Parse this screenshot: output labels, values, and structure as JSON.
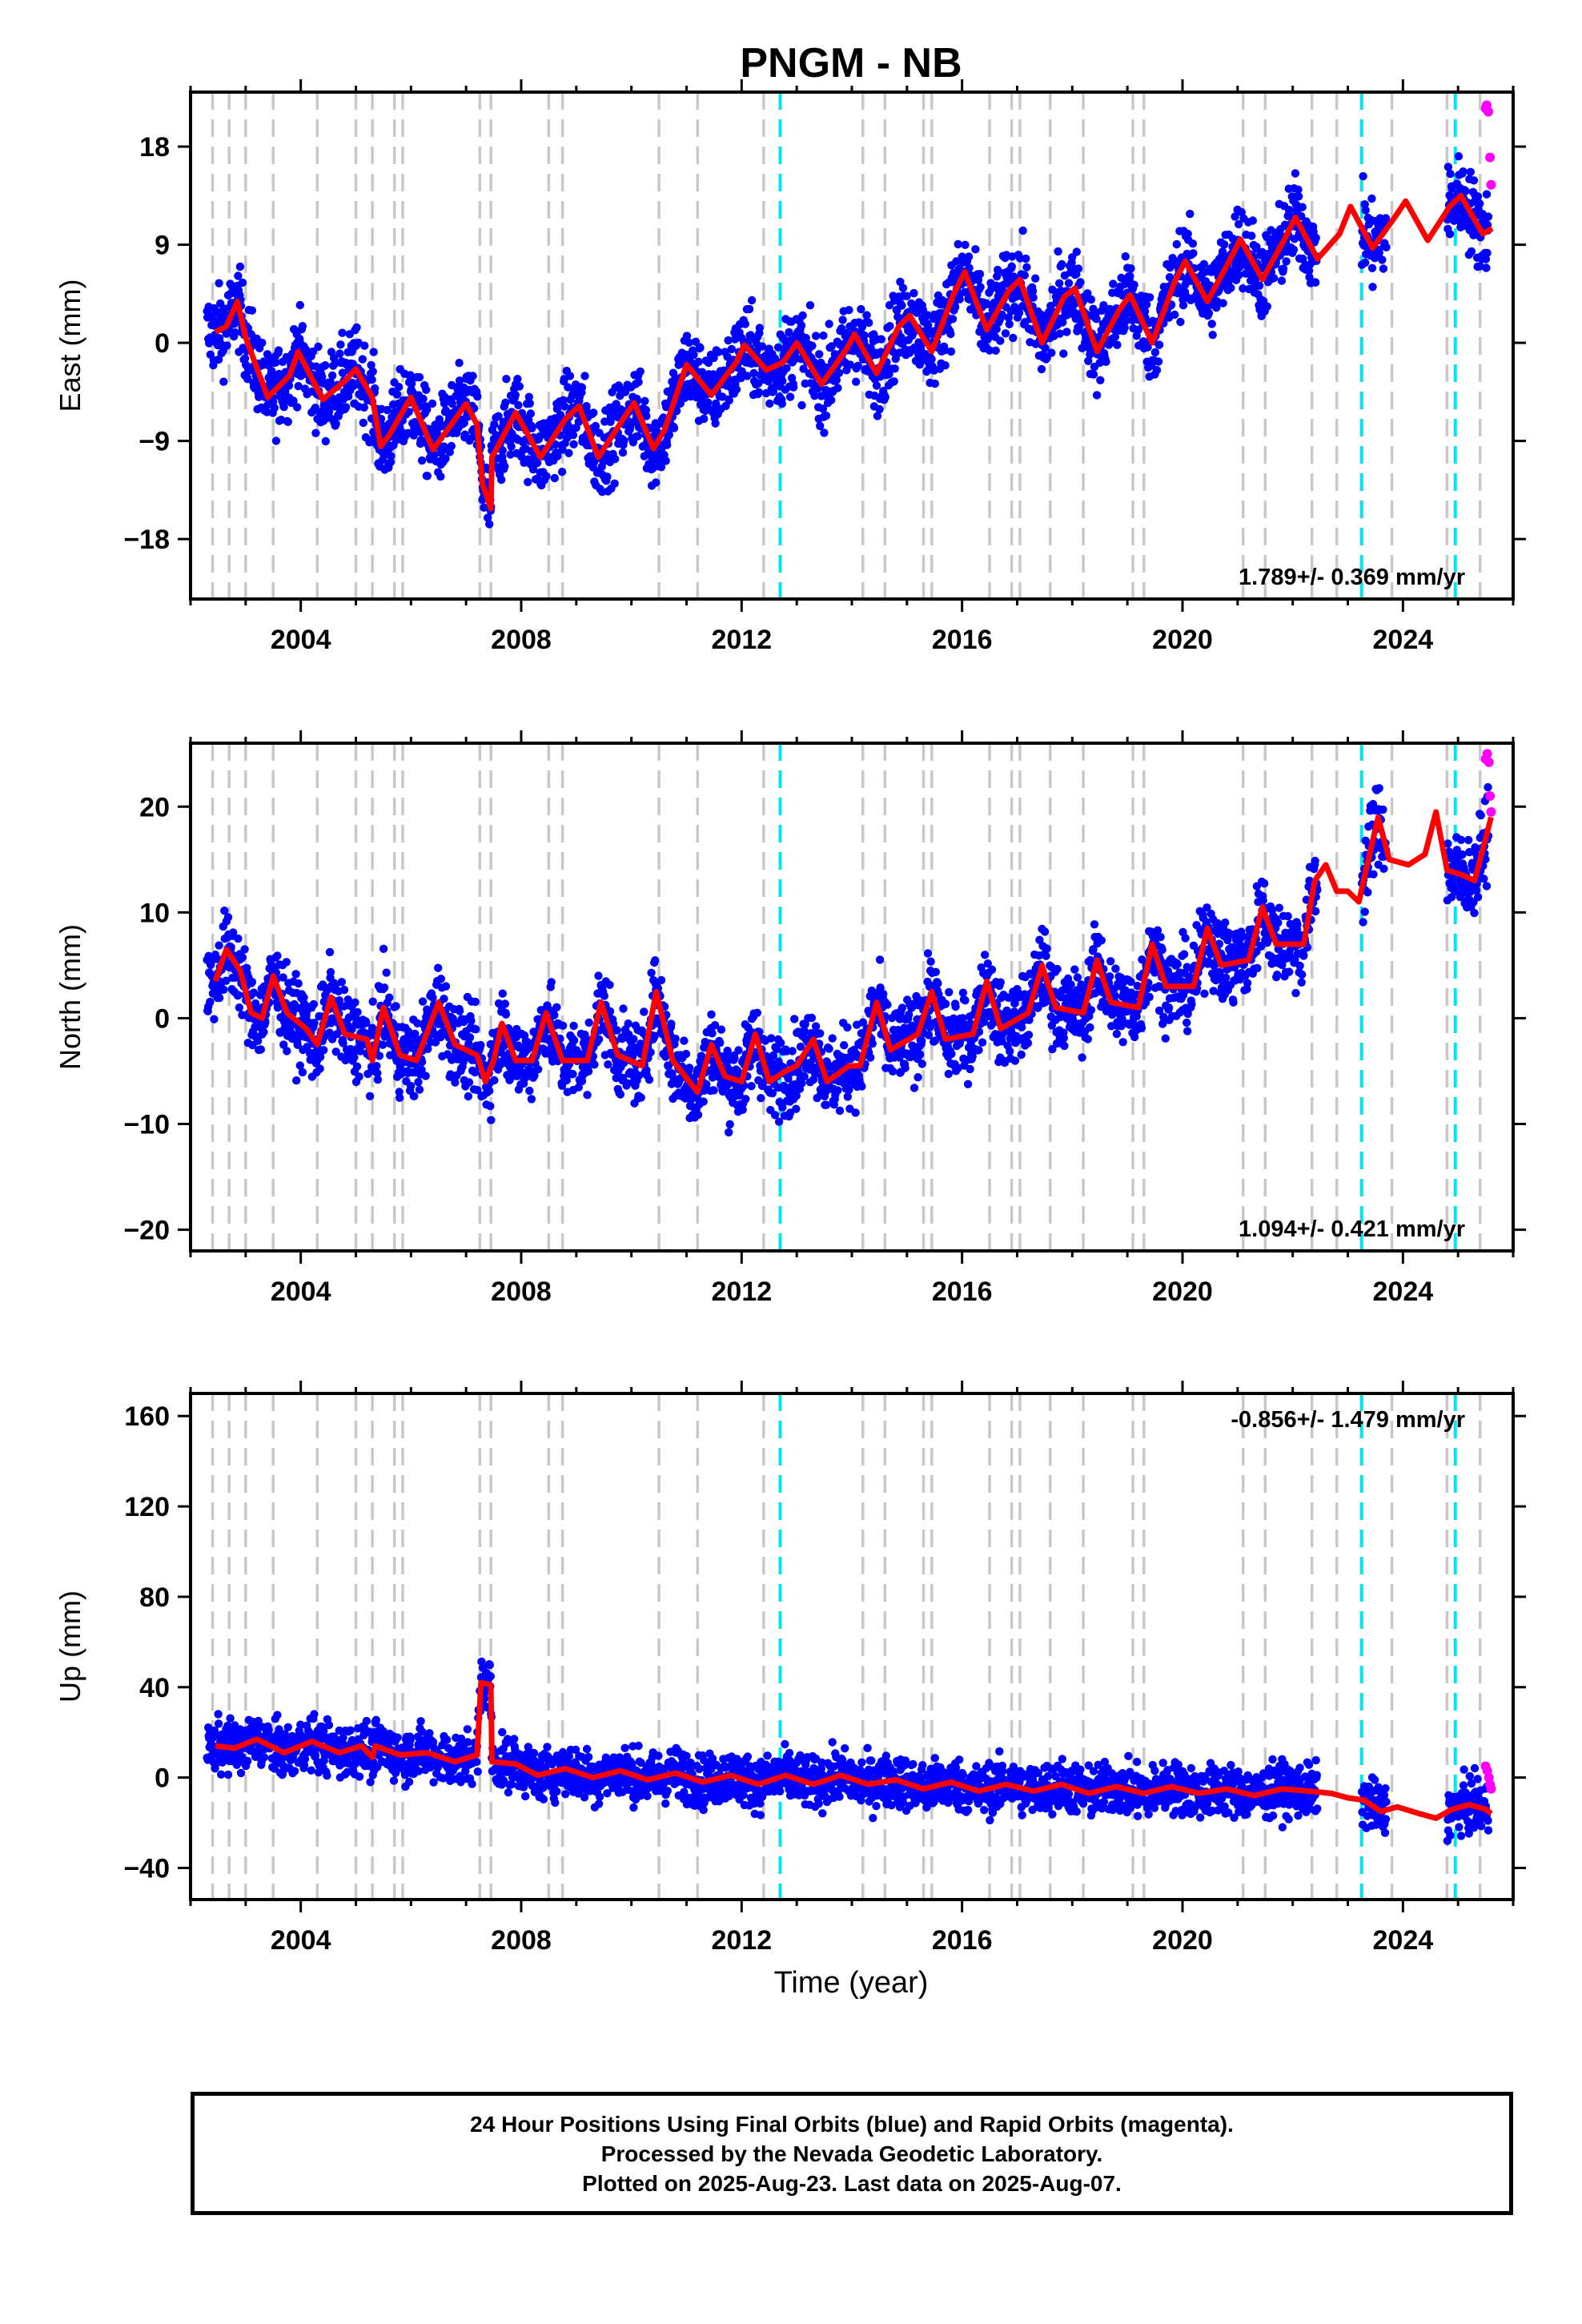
{
  "title": "PNGM - NB",
  "xlabel": "Time (year)",
  "caption": {
    "line1": "24 Hour Positions Using Final Orbits (blue) and Rapid Orbits (magenta).",
    "line2": "Processed by the Nevada Geodetic Laboratory.",
    "line3": "Plotted on 2025-Aug-23. Last data on 2025-Aug-07."
  },
  "colors": {
    "final_orbits": "#0000ff",
    "rapid_orbits": "#ff00ff",
    "model": "#ff0000",
    "equipment_change": "#c8c8c8",
    "earthquake": "#00e5ee"
  },
  "chart_data": [
    {
      "type": "scatter",
      "name": "East",
      "ylabel": "East (mm)",
      "xlim": [
        2002.0,
        2026.0
      ],
      "ylim": [
        -23.5,
        23.0
      ],
      "xticks": [
        2004,
        2008,
        2012,
        2016,
        2020,
        2024
      ],
      "yticks": [
        -18,
        -9,
        0,
        9,
        18
      ],
      "ytick_labels": [
        "−18",
        "−9",
        "0",
        "9",
        "18"
      ],
      "rate_label": "1.789+/- 0.369 mm/yr",
      "rate_label_position": "bottom-right",
      "grid": false,
      "breaks_grey": [
        2002.4,
        2002.7,
        2003.0,
        2003.5,
        2004.3,
        2005.0,
        2005.3,
        2005.7,
        2005.85,
        2007.25,
        2007.45,
        2008.5,
        2008.75,
        2010.5,
        2011.2,
        2012.4,
        2014.2,
        2014.6,
        2015.3,
        2015.45,
        2016.5,
        2016.9,
        2017.05,
        2017.6,
        2018.2,
        2019.1,
        2019.3,
        2021.1,
        2021.5,
        2022.35,
        2022.8,
        2023.8,
        2024.8,
        2025.4
      ],
      "breaks_cyan": [
        2012.7,
        2023.25,
        2024.95
      ],
      "model_points": [
        [
          2002.45,
          1.0
        ],
        [
          2002.65,
          1.5
        ],
        [
          2002.85,
          3.8
        ],
        [
          2003.0,
          0.5
        ],
        [
          2003.4,
          -5.0
        ],
        [
          2003.8,
          -3.0
        ],
        [
          2003.95,
          -0.8
        ],
        [
          2004.4,
          -5.2
        ],
        [
          2004.8,
          -3.5
        ],
        [
          2005.0,
          -2.4
        ],
        [
          2005.3,
          -5.0
        ],
        [
          2005.45,
          -9.5
        ],
        [
          2005.6,
          -8.5
        ],
        [
          2005.85,
          -6.3
        ],
        [
          2006.0,
          -5.0
        ],
        [
          2006.4,
          -9.8
        ],
        [
          2006.8,
          -7.0
        ],
        [
          2007.0,
          -5.6
        ],
        [
          2007.2,
          -7.5
        ],
        [
          2007.3,
          -13.0
        ],
        [
          2007.45,
          -15.2
        ],
        [
          2007.47,
          -10.5
        ],
        [
          2007.9,
          -6.4
        ],
        [
          2008.35,
          -10.5
        ],
        [
          2008.8,
          -7.0
        ],
        [
          2009.05,
          -5.8
        ],
        [
          2009.4,
          -10.5
        ],
        [
          2009.85,
          -7.0
        ],
        [
          2010.05,
          -5.5
        ],
        [
          2010.4,
          -9.7
        ],
        [
          2010.6,
          -8.0
        ],
        [
          2011.0,
          -2.0
        ],
        [
          2011.45,
          -4.8
        ],
        [
          2011.9,
          -1.8
        ],
        [
          2012.05,
          -0.2
        ],
        [
          2012.45,
          -2.5
        ],
        [
          2012.75,
          -1.8
        ],
        [
          2013.0,
          0.0
        ],
        [
          2013.45,
          -3.8
        ],
        [
          2013.9,
          -0.6
        ],
        [
          2014.05,
          0.8
        ],
        [
          2014.45,
          -2.8
        ],
        [
          2014.85,
          1.5
        ],
        [
          2015.05,
          2.5
        ],
        [
          2015.45,
          -0.8
        ],
        [
          2015.85,
          4.5
        ],
        [
          2016.05,
          6.5
        ],
        [
          2016.45,
          1.2
        ],
        [
          2016.85,
          4.8
        ],
        [
          2017.05,
          5.8
        ],
        [
          2017.45,
          0.0
        ],
        [
          2017.85,
          4.2
        ],
        [
          2018.05,
          5.0
        ],
        [
          2018.45,
          -0.8
        ],
        [
          2018.85,
          3.0
        ],
        [
          2019.05,
          4.4
        ],
        [
          2019.45,
          0.0
        ],
        [
          2019.85,
          5.5
        ],
        [
          2020.05,
          7.5
        ],
        [
          2020.45,
          3.8
        ],
        [
          2020.85,
          7.5
        ],
        [
          2021.05,
          9.5
        ],
        [
          2021.45,
          5.8
        ],
        [
          2021.85,
          9.5
        ],
        [
          2022.05,
          11.5
        ],
        [
          2022.45,
          7.7
        ],
        [
          2022.85,
          10.0
        ],
        [
          2023.05,
          12.5
        ],
        [
          2023.45,
          8.7
        ],
        [
          2023.85,
          11.5
        ],
        [
          2024.05,
          13.0
        ],
        [
          2024.45,
          9.4
        ],
        [
          2024.85,
          12.5
        ],
        [
          2025.05,
          13.5
        ],
        [
          2025.45,
          10.0
        ],
        [
          2025.62,
          10.5
        ]
      ],
      "rapid_points": [
        [
          2025.5,
          21.5
        ],
        [
          2025.52,
          21.8
        ],
        [
          2025.55,
          21.2
        ],
        [
          2025.58,
          17.0
        ],
        [
          2025.6,
          14.5
        ]
      ]
    },
    {
      "type": "scatter",
      "name": "North",
      "ylabel": "North (mm)",
      "xlim": [
        2002.0,
        2026.0
      ],
      "ylim": [
        -22.0,
        26.0
      ],
      "xticks": [
        2004,
        2008,
        2012,
        2016,
        2020,
        2024
      ],
      "yticks": [
        -20,
        -10,
        0,
        10,
        20
      ],
      "ytick_labels": [
        "−20",
        "−10",
        "0",
        "10",
        "20"
      ],
      "rate_label": "1.094+/- 0.421 mm/yr",
      "rate_label_position": "bottom-right",
      "grid": false,
      "breaks_grey": [
        2002.4,
        2002.7,
        2003.0,
        2003.5,
        2004.3,
        2005.0,
        2005.3,
        2005.7,
        2005.85,
        2007.25,
        2007.45,
        2008.5,
        2008.75,
        2010.5,
        2011.2,
        2012.4,
        2014.2,
        2014.6,
        2015.3,
        2015.45,
        2016.5,
        2016.9,
        2017.05,
        2017.6,
        2018.2,
        2019.1,
        2019.3,
        2021.1,
        2021.5,
        2022.35,
        2022.8,
        2023.8,
        2024.8,
        2025.4
      ],
      "breaks_cyan": [
        2012.7,
        2023.25,
        2024.95
      ],
      "model_points": [
        [
          2002.45,
          3.5
        ],
        [
          2002.65,
          6.5
        ],
        [
          2002.9,
          4.5
        ],
        [
          2003.1,
          0.5
        ],
        [
          2003.3,
          0.0
        ],
        [
          2003.5,
          4.0
        ],
        [
          2003.75,
          0.5
        ],
        [
          2004.1,
          -1.0
        ],
        [
          2004.3,
          -2.5
        ],
        [
          2004.55,
          2.0
        ],
        [
          2004.8,
          -1.5
        ],
        [
          2005.2,
          -2.0
        ],
        [
          2005.3,
          -4.0
        ],
        [
          2005.5,
          1.0
        ],
        [
          2005.8,
          -3.5
        ],
        [
          2006.1,
          -4.0
        ],
        [
          2006.5,
          1.5
        ],
        [
          2006.8,
          -2.5
        ],
        [
          2007.2,
          -3.5
        ],
        [
          2007.35,
          -6.0
        ],
        [
          2007.5,
          -4.0
        ],
        [
          2007.65,
          -0.5
        ],
        [
          2007.9,
          -4.0
        ],
        [
          2008.2,
          -4.0
        ],
        [
          2008.45,
          0.5
        ],
        [
          2008.75,
          -4.0
        ],
        [
          2009.2,
          -4.0
        ],
        [
          2009.45,
          1.5
        ],
        [
          2009.75,
          -3.5
        ],
        [
          2010.2,
          -4.5
        ],
        [
          2010.45,
          2.5
        ],
        [
          2010.75,
          -4.0
        ],
        [
          2011.2,
          -7.0
        ],
        [
          2011.45,
          -2.5
        ],
        [
          2011.7,
          -5.5
        ],
        [
          2012.0,
          -6.0
        ],
        [
          2012.25,
          -1.5
        ],
        [
          2012.5,
          -6.0
        ],
        [
          2012.8,
          -5.0
        ],
        [
          2013.0,
          -4.5
        ],
        [
          2013.3,
          -2.0
        ],
        [
          2013.55,
          -6.0
        ],
        [
          2013.95,
          -4.5
        ],
        [
          2014.15,
          -4.5
        ],
        [
          2014.45,
          1.5
        ],
        [
          2014.7,
          -3.0
        ],
        [
          2015.2,
          -1.5
        ],
        [
          2015.45,
          2.5
        ],
        [
          2015.7,
          -2.0
        ],
        [
          2016.2,
          -1.5
        ],
        [
          2016.45,
          3.5
        ],
        [
          2016.7,
          -1.0
        ],
        [
          2017.2,
          0.5
        ],
        [
          2017.45,
          5.0
        ],
        [
          2017.7,
          1.0
        ],
        [
          2018.2,
          0.5
        ],
        [
          2018.45,
          5.5
        ],
        [
          2018.7,
          1.5
        ],
        [
          2019.2,
          1.0
        ],
        [
          2019.45,
          7.0
        ],
        [
          2019.7,
          3.0
        ],
        [
          2020.2,
          3.0
        ],
        [
          2020.45,
          8.5
        ],
        [
          2020.7,
          5.0
        ],
        [
          2021.2,
          5.5
        ],
        [
          2021.45,
          10.5
        ],
        [
          2021.7,
          7.0
        ],
        [
          2022.2,
          7.0
        ],
        [
          2022.4,
          13.0
        ],
        [
          2022.6,
          14.5
        ],
        [
          2022.8,
          12.0
        ],
        [
          2023.0,
          12.0
        ],
        [
          2023.2,
          11.0
        ],
        [
          2023.35,
          14.5
        ],
        [
          2023.55,
          19.0
        ],
        [
          2023.75,
          15.0
        ],
        [
          2024.1,
          14.5
        ],
        [
          2024.4,
          15.5
        ],
        [
          2024.6,
          19.5
        ],
        [
          2024.8,
          14.0
        ],
        [
          2025.1,
          13.5
        ],
        [
          2025.3,
          13.0
        ],
        [
          2025.5,
          17.0
        ],
        [
          2025.6,
          19.0
        ]
      ],
      "rapid_points": [
        [
          2025.5,
          24.5
        ],
        [
          2025.53,
          25.0
        ],
        [
          2025.56,
          24.2
        ],
        [
          2025.58,
          21.0
        ],
        [
          2025.6,
          19.5
        ]
      ]
    },
    {
      "type": "scatter",
      "name": "Up",
      "ylabel": "Up (mm)",
      "xlim": [
        2002.0,
        2026.0
      ],
      "ylim": [
        -54.0,
        170.0
      ],
      "xticks": [
        2004,
        2008,
        2012,
        2016,
        2020,
        2024
      ],
      "yticks": [
        -40,
        0,
        40,
        80,
        120,
        160
      ],
      "ytick_labels": [
        "−40",
        "0",
        "40",
        "80",
        "120",
        "160"
      ],
      "rate_label": "-0.856+/- 1.479 mm/yr",
      "rate_label_position": "top-right",
      "grid": false,
      "breaks_grey": [
        2002.4,
        2002.7,
        2003.0,
        2003.5,
        2004.3,
        2005.0,
        2005.3,
        2005.7,
        2005.85,
        2007.25,
        2007.45,
        2008.5,
        2008.75,
        2010.5,
        2011.2,
        2012.4,
        2014.2,
        2014.6,
        2015.3,
        2015.45,
        2016.5,
        2016.9,
        2017.05,
        2017.6,
        2018.2,
        2019.1,
        2019.3,
        2021.1,
        2021.5,
        2022.35,
        2022.8,
        2023.8,
        2024.8,
        2025.4
      ],
      "breaks_cyan": [
        2012.7,
        2023.25,
        2024.95
      ],
      "model_points": [
        [
          2002.45,
          14.0
        ],
        [
          2002.8,
          13.0
        ],
        [
          2003.2,
          17.0
        ],
        [
          2003.7,
          11.0
        ],
        [
          2004.2,
          16.0
        ],
        [
          2004.7,
          11.0
        ],
        [
          2005.1,
          14.0
        ],
        [
          2005.3,
          9.0
        ],
        [
          2005.35,
          14.0
        ],
        [
          2005.8,
          10.0
        ],
        [
          2006.3,
          11.0
        ],
        [
          2006.8,
          7.0
        ],
        [
          2007.2,
          10.0
        ],
        [
          2007.27,
          42.0
        ],
        [
          2007.45,
          41.0
        ],
        [
          2007.47,
          7.0
        ],
        [
          2007.9,
          6.0
        ],
        [
          2008.3,
          1.0
        ],
        [
          2008.8,
          4.0
        ],
        [
          2009.3,
          0.0
        ],
        [
          2009.8,
          3.0
        ],
        [
          2010.3,
          -1.0
        ],
        [
          2010.8,
          2.0
        ],
        [
          2011.3,
          -2.0
        ],
        [
          2011.8,
          1.0
        ],
        [
          2012.3,
          -3.0
        ],
        [
          2012.8,
          1.0
        ],
        [
          2013.3,
          -3.0
        ],
        [
          2013.8,
          1.0
        ],
        [
          2014.3,
          -3.0
        ],
        [
          2014.8,
          -1.0
        ],
        [
          2015.3,
          -5.0
        ],
        [
          2015.8,
          -2.0
        ],
        [
          2016.3,
          -6.0
        ],
        [
          2016.8,
          -3.0
        ],
        [
          2017.3,
          -6.0
        ],
        [
          2017.8,
          -3.0
        ],
        [
          2018.3,
          -7.0
        ],
        [
          2018.8,
          -4.0
        ],
        [
          2019.3,
          -7.0
        ],
        [
          2019.8,
          -4.0
        ],
        [
          2020.3,
          -7.0
        ],
        [
          2020.8,
          -5.0
        ],
        [
          2021.3,
          -8.0
        ],
        [
          2021.8,
          -5.0
        ],
        [
          2022.3,
          -6.0
        ],
        [
          2022.7,
          -7.0
        ],
        [
          2023.0,
          -9.0
        ],
        [
          2023.3,
          -10.0
        ],
        [
          2023.6,
          -15.0
        ],
        [
          2023.9,
          -13.0
        ],
        [
          2024.3,
          -16.0
        ],
        [
          2024.6,
          -18.0
        ],
        [
          2024.9,
          -14.0
        ],
        [
          2025.2,
          -12.0
        ],
        [
          2025.5,
          -14.0
        ],
        [
          2025.6,
          -16.0
        ]
      ],
      "rapid_points": [
        [
          2025.5,
          5.0
        ],
        [
          2025.53,
          3.0
        ],
        [
          2025.56,
          0.0
        ],
        [
          2025.58,
          -3.0
        ],
        [
          2025.6,
          -5.0
        ]
      ]
    }
  ]
}
